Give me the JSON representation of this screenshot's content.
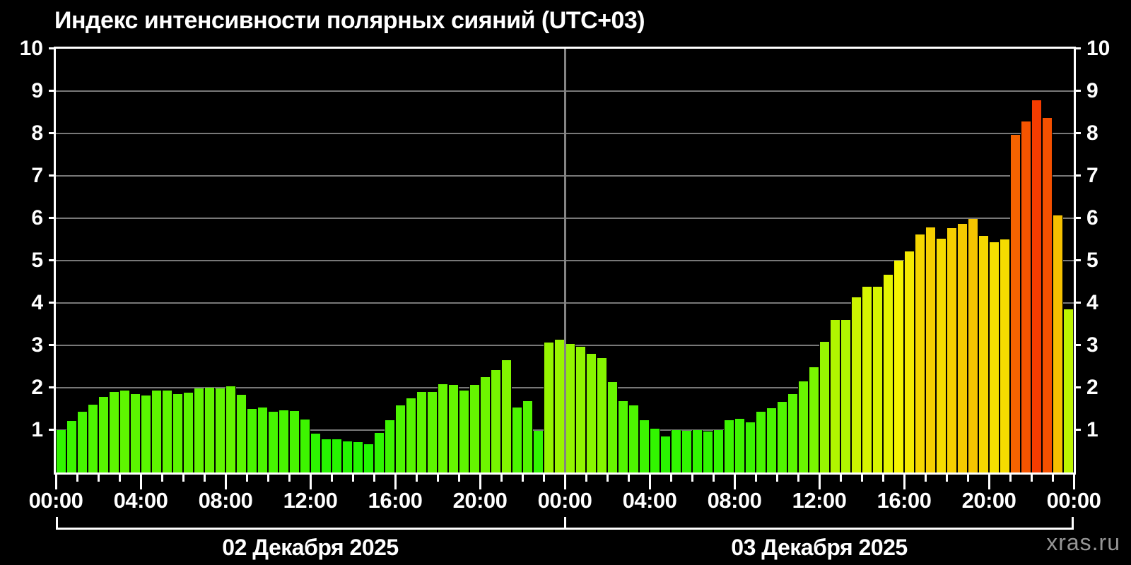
{
  "title": "Индекс интенсивности полярных сияний (UTC+03)",
  "watermark": "xras.ru",
  "colors": {
    "background": "#000000",
    "axis_frame": "#ffffff",
    "gridline": "#787878",
    "day_divider": "#848484",
    "text": "#ffffff",
    "watermark": "#969696",
    "bar_outline": "#000000"
  },
  "y_axis": {
    "min": 0,
    "max": 10,
    "tick_labels": [
      "1",
      "2",
      "3",
      "4",
      "5",
      "6",
      "7",
      "8",
      "9",
      "10"
    ]
  },
  "x_axis": {
    "minor_tick_every_hours": 1,
    "major_tick_every_hours": 4,
    "total_hours": 48,
    "major_labels": [
      "00:00",
      "04:00",
      "08:00",
      "12:00",
      "16:00",
      "20:00",
      "00:00",
      "04:00",
      "08:00",
      "12:00",
      "16:00",
      "20:00",
      "00:00"
    ]
  },
  "chart_data": {
    "type": "bar",
    "title": "Индекс интенсивности полярных сияний (UTC+03)",
    "xlabel": "",
    "ylabel": "",
    "ylim": [
      0,
      10
    ],
    "grid": true,
    "interval_minutes": 30,
    "colormap": {
      "model": "hsl",
      "hue_at_zero": 120,
      "hue_per_unit": -12,
      "hue_min": 0,
      "saturation_pct": 100,
      "lightness_pct": 48
    },
    "days": [
      {
        "date": "02 Декабря 2025",
        "values": [
          1.0,
          1.22,
          1.43,
          1.6,
          1.78,
          1.9,
          1.93,
          1.85,
          1.82,
          1.93,
          1.93,
          1.85,
          1.88,
          1.98,
          2.0,
          1.98,
          2.04,
          1.83,
          1.5,
          1.53,
          1.43,
          1.47,
          1.45,
          1.25,
          0.92,
          0.78,
          0.78,
          0.73,
          0.72,
          0.66,
          0.94,
          1.24,
          1.58,
          1.75,
          1.9,
          1.9,
          2.08,
          2.06,
          1.93,
          2.07,
          2.25,
          2.42,
          2.65,
          1.53,
          1.68,
          0.98,
          3.07,
          3.13
        ]
      },
      {
        "date": "03 Декабря 2025",
        "values": [
          3.03,
          2.96,
          2.8,
          2.7,
          2.13,
          1.68,
          1.58,
          1.23,
          1.03,
          0.85,
          1.0,
          0.98,
          1.0,
          0.96,
          1.0,
          1.23,
          1.26,
          1.19,
          1.44,
          1.52,
          1.66,
          1.85,
          2.15,
          2.49,
          3.08,
          3.6,
          3.6,
          4.14,
          4.38,
          4.38,
          4.66,
          5.0,
          5.22,
          5.62,
          5.78,
          5.52,
          5.77,
          5.87,
          5.98,
          5.58,
          5.44,
          5.5,
          7.97,
          8.29,
          8.78,
          8.37,
          6.07,
          3.85
        ]
      }
    ]
  }
}
